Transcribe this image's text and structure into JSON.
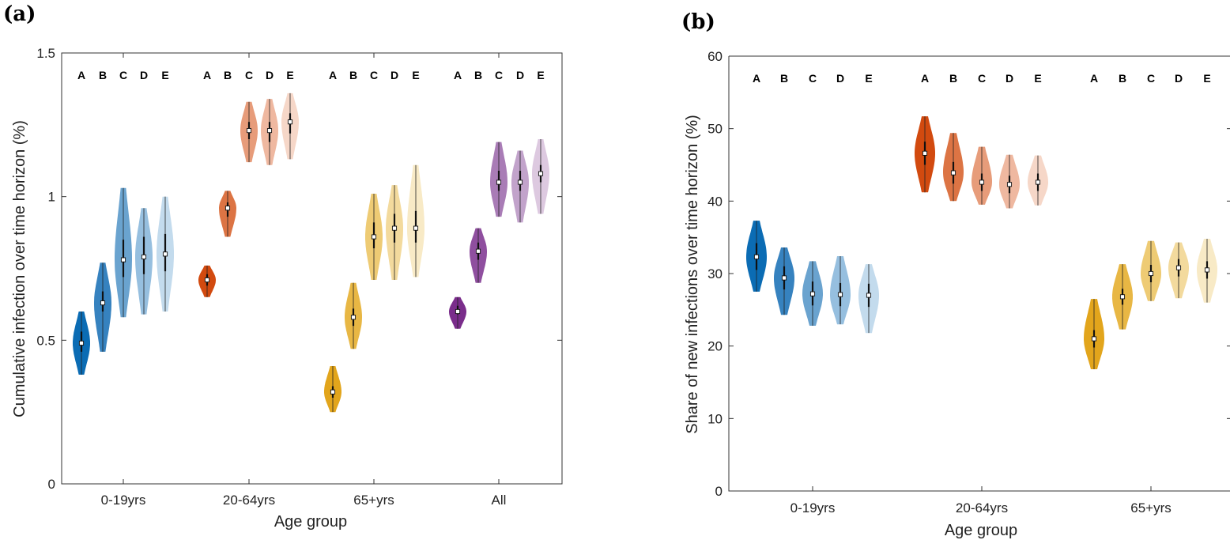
{
  "palettes": {
    "blue": [
      "#0b6cb4",
      "#3682bf",
      "#6aa3cf",
      "#96bfdf",
      "#c3dbed"
    ],
    "orange": [
      "#d24a0f",
      "#dc7444",
      "#e79c7a",
      "#efb8a0",
      "#f6d7c8"
    ],
    "gold": [
      "#e2a51c",
      "#e8b744",
      "#eecb74",
      "#f3da9d",
      "#f8eac6"
    ],
    "purple": [
      "#7a2d8b",
      "#8f4f9f",
      "#a97cb6",
      "#c2a3cb",
      "#ddc9e0"
    ]
  },
  "chart_data": [
    {
      "type": "violin",
      "panel_label": "(a)",
      "xlabel": "Age group",
      "ylabel": "Cumulative infection over time horizon (%)",
      "ylim": [
        0,
        1.5
      ],
      "yticks": [
        "0",
        "0.5",
        "1",
        "1.5"
      ],
      "categories": [
        "0-19yrs",
        "20-64yrs",
        "65+yrs",
        "All"
      ],
      "scenarios": [
        "A",
        "B",
        "C",
        "D",
        "E"
      ],
      "series": [
        {
          "palette": "blue",
          "min": [
            0.38,
            0.46,
            0.58,
            0.59,
            0.6
          ],
          "max": [
            0.6,
            0.77,
            1.03,
            0.96,
            1.0
          ],
          "median": [
            0.49,
            0.63,
            0.78,
            0.79,
            0.8
          ],
          "q1": [
            0.46,
            0.6,
            0.72,
            0.73,
            0.74
          ],
          "q3": [
            0.53,
            0.67,
            0.85,
            0.86,
            0.87
          ]
        },
        {
          "palette": "orange",
          "min": [
            0.65,
            0.86,
            1.12,
            1.11,
            1.13
          ],
          "max": [
            0.76,
            1.02,
            1.33,
            1.34,
            1.36
          ],
          "median": [
            0.71,
            0.96,
            1.23,
            1.23,
            1.26
          ],
          "q1": [
            0.69,
            0.93,
            1.2,
            1.19,
            1.22
          ],
          "q3": [
            0.73,
            0.98,
            1.26,
            1.26,
            1.29
          ]
        },
        {
          "palette": "gold",
          "min": [
            0.25,
            0.47,
            0.71,
            0.71,
            0.72
          ],
          "max": [
            0.41,
            0.7,
            1.01,
            1.04,
            1.11
          ],
          "median": [
            0.32,
            0.58,
            0.86,
            0.89,
            0.89
          ],
          "q1": [
            0.3,
            0.55,
            0.82,
            0.84,
            0.84
          ],
          "q3": [
            0.34,
            0.61,
            0.91,
            0.94,
            0.95
          ]
        },
        {
          "palette": "purple",
          "min": [
            0.54,
            0.7,
            0.93,
            0.91,
            0.94
          ],
          "max": [
            0.65,
            0.89,
            1.19,
            1.16,
            1.2
          ],
          "median": [
            0.6,
            0.81,
            1.05,
            1.05,
            1.08
          ],
          "q1": [
            0.59,
            0.78,
            1.02,
            1.02,
            1.05
          ],
          "q3": [
            0.62,
            0.84,
            1.09,
            1.09,
            1.11
          ]
        }
      ]
    },
    {
      "type": "violin",
      "panel_label": "(b)",
      "xlabel": "Age group",
      "ylabel": "Share of new infections over time horizon (%)",
      "ylim": [
        0,
        60
      ],
      "yticks": [
        "0",
        "10",
        "20",
        "30",
        "40",
        "50",
        "60"
      ],
      "categories": [
        "0-19yrs",
        "20-64yrs",
        "65+yrs"
      ],
      "scenarios": [
        "A",
        "B",
        "C",
        "D",
        "E"
      ],
      "series": [
        {
          "palette": "blue",
          "min": [
            27.5,
            24.3,
            22.8,
            23.0,
            21.8
          ],
          "max": [
            37.3,
            33.6,
            31.7,
            32.4,
            31.3
          ],
          "median": [
            32.3,
            29.4,
            27.2,
            27.1,
            27.0
          ],
          "q1": [
            30.5,
            27.8,
            25.6,
            25.5,
            25.4
          ],
          "q3": [
            34.2,
            31.0,
            28.9,
            28.7,
            28.6
          ]
        },
        {
          "palette": "orange",
          "min": [
            41.2,
            40.0,
            39.5,
            39.0,
            39.4
          ],
          "max": [
            51.7,
            49.4,
            47.5,
            46.4,
            46.3
          ],
          "median": [
            46.6,
            43.9,
            42.6,
            42.3,
            42.6
          ],
          "q1": [
            45.0,
            42.4,
            41.4,
            41.1,
            41.4
          ],
          "q3": [
            48.2,
            45.4,
            43.8,
            43.5,
            43.8
          ]
        },
        {
          "palette": "gold",
          "min": [
            16.8,
            22.3,
            26.2,
            26.6,
            26.0
          ],
          "max": [
            26.5,
            31.3,
            34.5,
            34.3,
            34.8
          ],
          "median": [
            21.0,
            26.8,
            30.0,
            30.8,
            30.5
          ],
          "q1": [
            19.8,
            25.7,
            28.8,
            29.6,
            29.3
          ],
          "q3": [
            22.2,
            27.9,
            31.2,
            32.0,
            31.7
          ]
        }
      ]
    }
  ]
}
